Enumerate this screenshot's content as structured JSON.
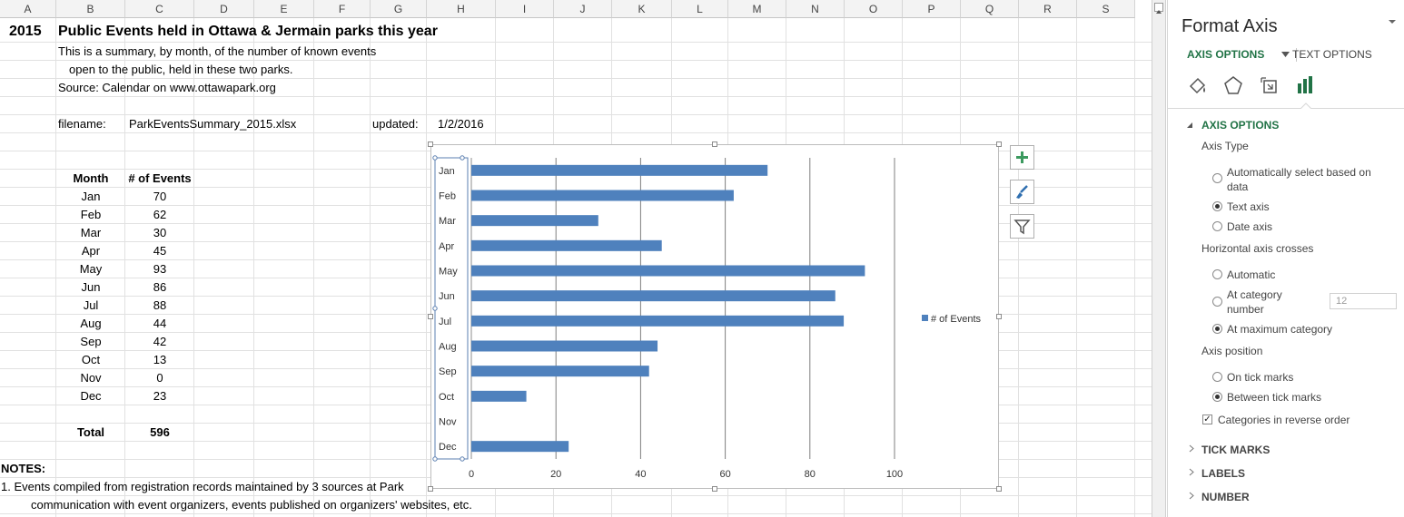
{
  "columns": [
    "A",
    "B",
    "C",
    "D",
    "E",
    "F",
    "G",
    "H",
    "I",
    "J",
    "K",
    "L",
    "M",
    "N",
    "O",
    "P",
    "Q",
    "R",
    "S"
  ],
  "sheet": {
    "year": "2015",
    "title": "Public Events held in Ottawa & Jermain parks this year",
    "desc1": "This is a summary, by month, of the number of known events",
    "desc2": "open to the public, held in these two parks.",
    "source": "Source: Calendar on www.ottawapark.org",
    "filename_label": "filename:",
    "filename": "ParkEventsSummary_2015.xlsx",
    "updated_label": "updated:",
    "updated": "1/2/2016",
    "month_header": "Month",
    "events_header": "# of Events",
    "rows": [
      {
        "month": "Jan",
        "events": "70"
      },
      {
        "month": "Feb",
        "events": "62"
      },
      {
        "month": "Mar",
        "events": "30"
      },
      {
        "month": "Apr",
        "events": "45"
      },
      {
        "month": "May",
        "events": "93"
      },
      {
        "month": "Jun",
        "events": "86"
      },
      {
        "month": "Jul",
        "events": "88"
      },
      {
        "month": "Aug",
        "events": "44"
      },
      {
        "month": "Sep",
        "events": "42"
      },
      {
        "month": "Oct",
        "events": "13"
      },
      {
        "month": "Nov",
        "events": "0"
      },
      {
        "month": "Dec",
        "events": "23"
      }
    ],
    "total_label": "Total",
    "total": "596",
    "notes_label": "NOTES:",
    "note1": "1. Events compiled from registration records maintained by 3 sources at Park",
    "note2": "communication with event organizers, events published on organizers' websites, etc."
  },
  "chart_data": {
    "type": "bar",
    "orientation": "horizontal",
    "categories": [
      "Jan",
      "Feb",
      "Mar",
      "Apr",
      "May",
      "Jun",
      "Jul",
      "Aug",
      "Sep",
      "Oct",
      "Nov",
      "Dec"
    ],
    "series": [
      {
        "name": "# of Events",
        "values": [
          70,
          62,
          30,
          45,
          93,
          86,
          88,
          44,
          42,
          13,
          0,
          23
        ],
        "color": "#4f81bd"
      }
    ],
    "xlim": [
      0,
      100
    ],
    "xticks": [
      "0",
      "20",
      "40",
      "60",
      "80",
      "100"
    ],
    "grid": true,
    "legend": "right",
    "categories_reversed": true
  },
  "pane": {
    "title": "Format Axis",
    "tab_axis": "AXIS OPTIONS",
    "tab_text": "TEXT OPTIONS",
    "section_axis": "AXIS OPTIONS",
    "axis_type_label": "Axis Type",
    "opt_auto_1": "Automatically select based on",
    "opt_auto_2": "data",
    "opt_text_axis": "Text axis",
    "opt_date_axis": "Date axis",
    "crosses_label": "Horizontal axis crosses",
    "opt_automatic": "Automatic",
    "opt_at_cat_1": "At category",
    "opt_at_cat_2": "number",
    "cat_number_value": "12",
    "opt_at_max": "At maximum category",
    "position_label": "Axis position",
    "opt_on_tick": "On tick marks",
    "opt_between": "Between tick marks",
    "opt_reverse": "Categories in reverse order",
    "section_tick": "TICK MARKS",
    "section_labels": "LABELS",
    "section_number": "NUMBER",
    "accent_color": "#217346"
  }
}
